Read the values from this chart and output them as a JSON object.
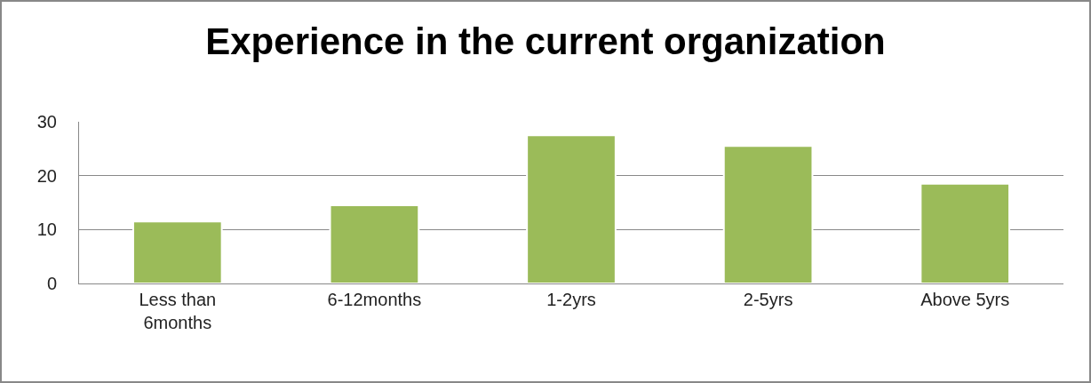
{
  "chart_data": {
    "type": "bar",
    "title": "Experience in the current organization",
    "categories": [
      "Less than\n6months",
      "6-12months",
      "1-2yrs",
      "2-5yrs",
      "Above 5yrs"
    ],
    "values": [
      11.5,
      14.5,
      27.5,
      25.5,
      18.5
    ],
    "color": "#9bbb59",
    "ylim": [
      0,
      30
    ],
    "yticks": [
      0,
      10,
      20,
      30
    ],
    "grid": "y",
    "legend": false
  }
}
